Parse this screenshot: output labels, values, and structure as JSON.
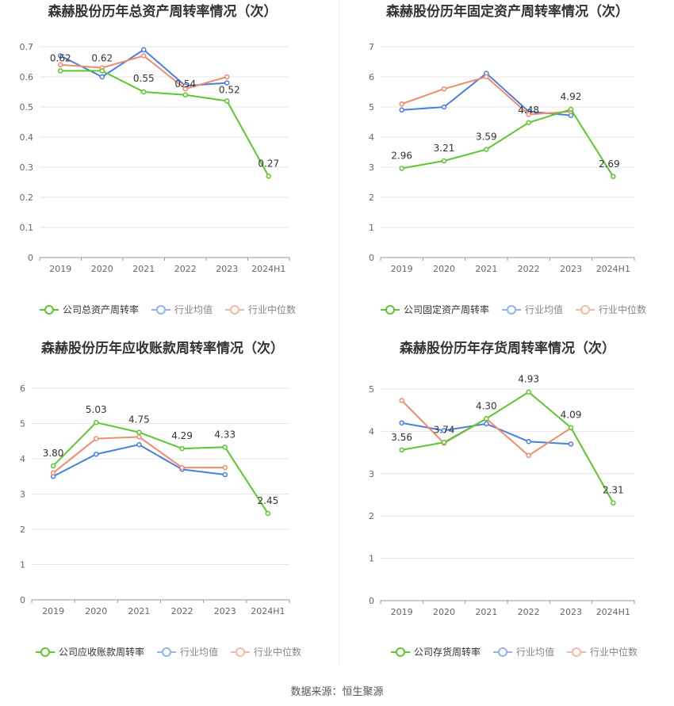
{
  "source_text": "数据来源：恒生聚源",
  "colors": {
    "company": "#5cc72f",
    "avg": "#4a7fe0",
    "median": "#f08c6c"
  },
  "chart_data": [
    {
      "type": "line",
      "title": "森赫股份历年总资产周转率情况（次）",
      "categories": [
        "2019",
        "2020",
        "2021",
        "2022",
        "2023",
        "2024H1"
      ],
      "ylim": [
        0,
        0.7
      ],
      "yticks": [
        "0",
        "0.1",
        "0.2",
        "0.3",
        "0.4",
        "0.5",
        "0.6",
        "0.7"
      ],
      "grid": true,
      "legend": "bottom",
      "series": [
        {
          "name": "公司总资产周转率",
          "values": [
            0.62,
            0.62,
            0.55,
            0.54,
            0.52,
            0.27
          ],
          "labels": [
            "0.62",
            "0.62",
            "0.55",
            "0.54",
            "0.52",
            "0.27"
          ]
        },
        {
          "name": "行业均值",
          "values": [
            0.67,
            0.6,
            0.69,
            0.57,
            0.58,
            null
          ]
        },
        {
          "name": "行业中位数",
          "values": [
            0.64,
            0.63,
            0.67,
            0.56,
            0.6,
            null
          ]
        }
      ]
    },
    {
      "type": "line",
      "title": "森赫股份历年固定资产周转率情况（次）",
      "categories": [
        "2019",
        "2020",
        "2021",
        "2022",
        "2023",
        "2024H1"
      ],
      "ylim": [
        0,
        7
      ],
      "yticks": [
        "0",
        "1",
        "2",
        "3",
        "4",
        "5",
        "6",
        "7"
      ],
      "grid": true,
      "legend": "bottom",
      "series": [
        {
          "name": "公司固定资产周转率",
          "values": [
            2.96,
            3.21,
            3.59,
            4.48,
            4.92,
            2.69
          ],
          "labels": [
            "2.96",
            "3.21",
            "3.59",
            "4.48",
            "4.92",
            "2.69"
          ]
        },
        {
          "name": "行业均值",
          "values": [
            4.9,
            5.0,
            6.12,
            4.85,
            4.72,
            null
          ]
        },
        {
          "name": "行业中位数",
          "values": [
            5.1,
            5.6,
            6.0,
            4.75,
            4.85,
            null
          ]
        }
      ]
    },
    {
      "type": "line",
      "title": "森赫股份历年应收账款周转率情况（次）",
      "categories": [
        "2019",
        "2020",
        "2021",
        "2022",
        "2023",
        "2024H1"
      ],
      "ylim": [
        0,
        6
      ],
      "yticks": [
        "0",
        "1",
        "2",
        "3",
        "4",
        "5",
        "6"
      ],
      "grid": true,
      "legend": "bottom",
      "series": [
        {
          "name": "公司应收账款周转率",
          "values": [
            3.8,
            5.03,
            4.75,
            4.29,
            4.33,
            2.45
          ],
          "labels": [
            "3.80",
            "5.03",
            "4.75",
            "4.29",
            "4.33",
            "2.45"
          ]
        },
        {
          "name": "行业均值",
          "values": [
            3.5,
            4.13,
            4.4,
            3.7,
            3.55,
            null
          ]
        },
        {
          "name": "行业中位数",
          "values": [
            3.6,
            4.57,
            4.62,
            3.75,
            3.75,
            null
          ]
        }
      ]
    },
    {
      "type": "line",
      "title": "森赫股份历年存货周转率情况（次）",
      "categories": [
        "2019",
        "2020",
        "2021",
        "2022",
        "2023",
        "2024H1"
      ],
      "ylim": [
        0,
        5
      ],
      "yticks": [
        "0",
        "1",
        "2",
        "3",
        "4",
        "5"
      ],
      "grid": true,
      "legend": "bottom",
      "series": [
        {
          "name": "公司存货周转率",
          "values": [
            3.56,
            3.74,
            4.3,
            4.93,
            4.09,
            2.31
          ],
          "labels": [
            "3.56",
            "3.74",
            "4.30",
            "4.93",
            "4.09",
            "2.31"
          ]
        },
        {
          "name": "行业均值",
          "values": [
            4.2,
            4.02,
            4.18,
            3.76,
            3.7,
            null
          ]
        },
        {
          "name": "行业中位数",
          "values": [
            4.73,
            3.72,
            4.3,
            3.43,
            4.08,
            null
          ]
        }
      ]
    }
  ]
}
